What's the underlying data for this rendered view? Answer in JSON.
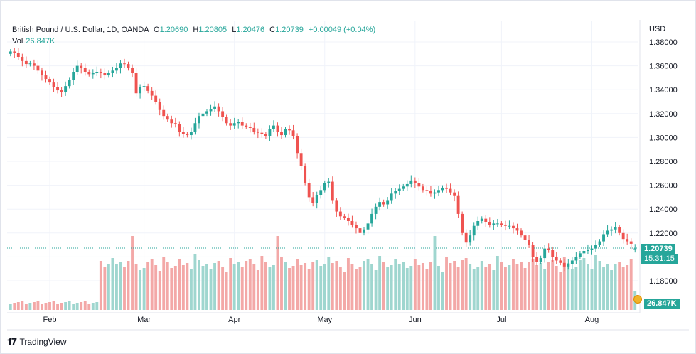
{
  "legend": {
    "symbol": "British Pound / U.S. Dollar, 1D, OANDA",
    "open_label": "O",
    "open": "1.20690",
    "high_label": "H",
    "high": "1.20805",
    "low_label": "L",
    "low": "1.20476",
    "close_label": "C",
    "close": "1.20739",
    "change": "+0.00049 (+0.04%)",
    "vol_label": "Vol",
    "vol_value": "26.847K"
  },
  "axis": {
    "currency": "USD",
    "last_price": "1.20739",
    "countdown": "15:31:15",
    "last_volume": "26.847K"
  },
  "footer": {
    "brand": "TradingView"
  },
  "colors": {
    "up": "#26a69a",
    "down": "#ef5350",
    "vol_up": "#9fd6cf",
    "vol_down": "#f3a8a7"
  },
  "chart_data": {
    "type": "candlestick",
    "symbol": "GBPUSD",
    "timeframe": "1D",
    "y_axis": {
      "ylim": [
        1.165,
        1.385
      ],
      "ticks": [
        "1.38000",
        "1.36000",
        "1.34000",
        "1.32000",
        "1.30000",
        "1.28000",
        "1.26000",
        "1.24000",
        "1.22000",
        "1.20000",
        "1.18000"
      ]
    },
    "x_ticks": [
      "Feb",
      "Mar",
      "Apr",
      "May",
      "Jun",
      "Jul",
      "Aug"
    ],
    "closes": [
      1.372,
      1.3705,
      1.3675,
      1.364,
      1.3615,
      1.362,
      1.36,
      1.356,
      1.352,
      1.349,
      1.346,
      1.342,
      1.3395,
      1.338,
      1.343,
      1.348,
      1.355,
      1.36,
      1.358,
      1.355,
      1.353,
      1.354,
      1.355,
      1.354,
      1.352,
      1.354,
      1.356,
      1.358,
      1.362,
      1.3615,
      1.358,
      1.354,
      1.337,
      1.342,
      1.343,
      1.339,
      1.335,
      1.33,
      1.323,
      1.318,
      1.315,
      1.312,
      1.311,
      1.305,
      1.303,
      1.302,
      1.305,
      1.312,
      1.318,
      1.32,
      1.322,
      1.324,
      1.326,
      1.322,
      1.317,
      1.312,
      1.31,
      1.312,
      1.313,
      1.31,
      1.309,
      1.308,
      1.305,
      1.304,
      1.303,
      1.301,
      1.307,
      1.31,
      1.305,
      1.302,
      1.307,
      1.306,
      1.301,
      1.287,
      1.276,
      1.262,
      1.25,
      1.245,
      1.252,
      1.256,
      1.262,
      1.263,
      1.247,
      1.238,
      1.234,
      1.233,
      1.23,
      1.227,
      1.224,
      1.22,
      1.223,
      1.228,
      1.236,
      1.242,
      1.246,
      1.244,
      1.247,
      1.253,
      1.255,
      1.257,
      1.259,
      1.261,
      1.264,
      1.262,
      1.259,
      1.256,
      1.255,
      1.253,
      1.254,
      1.256,
      1.258,
      1.257,
      1.254,
      1.251,
      1.236,
      1.22,
      1.212,
      1.218,
      1.226,
      1.23,
      1.232,
      1.229,
      1.227,
      1.228,
      1.228,
      1.227,
      1.226,
      1.226,
      1.224,
      1.222,
      1.218,
      1.214,
      1.21,
      1.2,
      1.196,
      1.199,
      1.207,
      1.206,
      1.2,
      1.197,
      1.195,
      1.192,
      1.194,
      1.197,
      1.2,
      1.203,
      1.205,
      1.206,
      1.207,
      1.21,
      1.213,
      1.219,
      1.222,
      1.223,
      1.225,
      1.22,
      1.215,
      1.213,
      1.211,
      1.207
    ],
    "volume_max": 0.34,
    "last": {
      "open": 1.2069,
      "high": 1.20805,
      "low": 1.20476,
      "close": 1.20739,
      "volume": "26.847K"
    }
  }
}
